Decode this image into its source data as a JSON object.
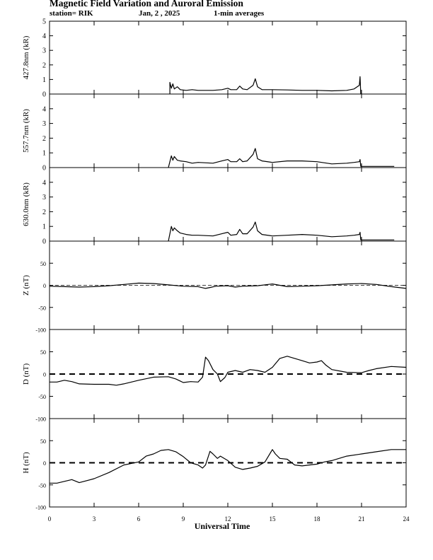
{
  "header": {
    "title": "Magnetic Field Variation and Auroral Emission",
    "station": "station= RIK",
    "date": "Jan, 2  , 2025",
    "averaging": "1-min averages"
  },
  "chart_data": [
    {
      "type": "line",
      "ylabel": "427.8nm (kR)",
      "ylim": [
        0,
        5
      ],
      "yticks": [
        0,
        1,
        2,
        3,
        4,
        5
      ],
      "points": [
        [
          8.1,
          0.0
        ],
        [
          8.1,
          0.8
        ],
        [
          8.2,
          0.4
        ],
        [
          8.3,
          0.7
        ],
        [
          8.4,
          0.35
        ],
        [
          8.6,
          0.5
        ],
        [
          8.8,
          0.3
        ],
        [
          9.2,
          0.25
        ],
        [
          9.6,
          0.3
        ],
        [
          10.0,
          0.25
        ],
        [
          11.0,
          0.25
        ],
        [
          11.6,
          0.3
        ],
        [
          12.0,
          0.4
        ],
        [
          12.2,
          0.3
        ],
        [
          12.6,
          0.3
        ],
        [
          12.8,
          0.55
        ],
        [
          13.0,
          0.35
        ],
        [
          13.3,
          0.3
        ],
        [
          13.7,
          0.6
        ],
        [
          13.85,
          1.05
        ],
        [
          14.0,
          0.5
        ],
        [
          14.3,
          0.3
        ],
        [
          15.0,
          0.3
        ],
        [
          16.0,
          0.28
        ],
        [
          17.0,
          0.25
        ],
        [
          18.0,
          0.25
        ],
        [
          19.0,
          0.22
        ],
        [
          20.0,
          0.25
        ],
        [
          20.5,
          0.35
        ],
        [
          20.85,
          0.6
        ],
        [
          20.9,
          1.2
        ],
        [
          20.95,
          0.0
        ]
      ]
    },
    {
      "type": "line",
      "ylabel": "557.7nm (kR)",
      "ylim": [
        0,
        5
      ],
      "yticks": [
        0,
        1,
        2,
        3,
        4
      ],
      "points": [
        [
          8.0,
          0.0
        ],
        [
          8.1,
          0.4
        ],
        [
          8.2,
          0.8
        ],
        [
          8.3,
          0.5
        ],
        [
          8.4,
          0.75
        ],
        [
          8.6,
          0.5
        ],
        [
          8.8,
          0.45
        ],
        [
          9.2,
          0.4
        ],
        [
          9.6,
          0.3
        ],
        [
          10.0,
          0.35
        ],
        [
          11.0,
          0.3
        ],
        [
          11.6,
          0.45
        ],
        [
          12.0,
          0.55
        ],
        [
          12.2,
          0.4
        ],
        [
          12.6,
          0.4
        ],
        [
          12.8,
          0.6
        ],
        [
          13.0,
          0.4
        ],
        [
          13.3,
          0.45
        ],
        [
          13.7,
          0.9
        ],
        [
          13.85,
          1.3
        ],
        [
          14.0,
          0.6
        ],
        [
          14.3,
          0.45
        ],
        [
          15.0,
          0.35
        ],
        [
          16.0,
          0.45
        ],
        [
          17.0,
          0.45
        ],
        [
          18.0,
          0.4
        ],
        [
          19.0,
          0.25
        ],
        [
          20.0,
          0.3
        ],
        [
          20.5,
          0.35
        ],
        [
          20.85,
          0.4
        ],
        [
          20.9,
          0.55
        ],
        [
          20.95,
          0.08
        ],
        [
          22.5,
          0.08
        ],
        [
          23.2,
          0.08
        ]
      ]
    },
    {
      "type": "line",
      "ylabel": "630.0nm (kR)",
      "ylim": [
        0,
        5
      ],
      "yticks": [
        0,
        1,
        2,
        3,
        4
      ],
      "points": [
        [
          8.0,
          0.0
        ],
        [
          8.1,
          0.5
        ],
        [
          8.2,
          1.0
        ],
        [
          8.3,
          0.7
        ],
        [
          8.4,
          0.9
        ],
        [
          8.6,
          0.7
        ],
        [
          8.8,
          0.55
        ],
        [
          9.2,
          0.45
        ],
        [
          9.6,
          0.4
        ],
        [
          10.0,
          0.4
        ],
        [
          11.0,
          0.35
        ],
        [
          11.6,
          0.5
        ],
        [
          12.0,
          0.6
        ],
        [
          12.2,
          0.4
        ],
        [
          12.6,
          0.45
        ],
        [
          12.8,
          0.8
        ],
        [
          13.0,
          0.5
        ],
        [
          13.3,
          0.5
        ],
        [
          13.7,
          0.95
        ],
        [
          13.85,
          1.3
        ],
        [
          14.0,
          0.7
        ],
        [
          14.3,
          0.45
        ],
        [
          15.0,
          0.35
        ],
        [
          16.0,
          0.4
        ],
        [
          17.0,
          0.45
        ],
        [
          18.0,
          0.4
        ],
        [
          19.0,
          0.3
        ],
        [
          20.0,
          0.35
        ],
        [
          20.5,
          0.4
        ],
        [
          20.85,
          0.45
        ],
        [
          20.9,
          0.6
        ],
        [
          20.95,
          0.08
        ],
        [
          22.5,
          0.08
        ],
        [
          23.2,
          0.08
        ]
      ]
    },
    {
      "type": "line",
      "ylabel": "Z (nT)",
      "ylim": [
        -100,
        100
      ],
      "yticks": [
        -100,
        -50,
        0,
        50
      ],
      "zero_line": "dashed-thin",
      "points": [
        [
          0,
          -2
        ],
        [
          1,
          -3
        ],
        [
          2,
          -4
        ],
        [
          3,
          -3
        ],
        [
          4,
          -1
        ],
        [
          5,
          2
        ],
        [
          6,
          5
        ],
        [
          7,
          4
        ],
        [
          8,
          1
        ],
        [
          9,
          -2
        ],
        [
          10,
          -3
        ],
        [
          10.5,
          -7
        ],
        [
          10.8,
          -5
        ],
        [
          11.2,
          -2
        ],
        [
          12.0,
          -1
        ],
        [
          12.5,
          -4
        ],
        [
          13,
          -2
        ],
        [
          14,
          -1
        ],
        [
          15,
          3
        ],
        [
          16,
          -3
        ],
        [
          17,
          -2
        ],
        [
          18,
          -1
        ],
        [
          19,
          1
        ],
        [
          20,
          3
        ],
        [
          21,
          4
        ],
        [
          22,
          2
        ],
        [
          23,
          -3
        ],
        [
          24,
          -7
        ]
      ]
    },
    {
      "type": "line",
      "ylabel": "D (nT)",
      "ylim": [
        -100,
        100
      ],
      "yticks": [
        -100,
        -50,
        0,
        50
      ],
      "zero_line": "dashed",
      "points": [
        [
          0,
          -18
        ],
        [
          0.5,
          -18
        ],
        [
          1,
          -14
        ],
        [
          1.5,
          -17
        ],
        [
          2,
          -22
        ],
        [
          3,
          -23
        ],
        [
          4,
          -23
        ],
        [
          4.5,
          -25
        ],
        [
          5,
          -22
        ],
        [
          6,
          -14
        ],
        [
          7,
          -7
        ],
        [
          8,
          -6
        ],
        [
          8.5,
          -11
        ],
        [
          9,
          -19
        ],
        [
          9.5,
          -17
        ],
        [
          10,
          -18
        ],
        [
          10.3,
          -7
        ],
        [
          10.5,
          38
        ],
        [
          10.7,
          30
        ],
        [
          11.0,
          10
        ],
        [
          11.3,
          0
        ],
        [
          11.5,
          -17
        ],
        [
          11.8,
          -8
        ],
        [
          12,
          4
        ],
        [
          12.5,
          8
        ],
        [
          13,
          4
        ],
        [
          13.5,
          10
        ],
        [
          14,
          8
        ],
        [
          14.5,
          4
        ],
        [
          15,
          15
        ],
        [
          15.5,
          35
        ],
        [
          16,
          40
        ],
        [
          16.5,
          35
        ],
        [
          17,
          30
        ],
        [
          17.5,
          25
        ],
        [
          18,
          27
        ],
        [
          18.3,
          30
        ],
        [
          18.6,
          20
        ],
        [
          19,
          10
        ],
        [
          20,
          4
        ],
        [
          21,
          3
        ],
        [
          21.5,
          8
        ],
        [
          22,
          12
        ],
        [
          23,
          17
        ],
        [
          24,
          15
        ]
      ]
    },
    {
      "type": "line",
      "ylabel": "H (nT)",
      "ylim": [
        -100,
        100
      ],
      "yticks": [
        -100,
        -50,
        0,
        50
      ],
      "zero_line": "dashed",
      "points": [
        [
          0,
          -46
        ],
        [
          0.5,
          -46
        ],
        [
          1,
          -42
        ],
        [
          1.5,
          -38
        ],
        [
          2,
          -45
        ],
        [
          3,
          -36
        ],
        [
          4,
          -22
        ],
        [
          5,
          -5
        ],
        [
          6,
          2
        ],
        [
          6.5,
          15
        ],
        [
          7,
          20
        ],
        [
          7.5,
          28
        ],
        [
          8,
          30
        ],
        [
          8.5,
          25
        ],
        [
          9,
          14
        ],
        [
          9.5,
          0
        ],
        [
          10,
          -5
        ],
        [
          10.3,
          -12
        ],
        [
          10.5,
          -5
        ],
        [
          10.8,
          26
        ],
        [
          11,
          20
        ],
        [
          11.3,
          10
        ],
        [
          11.5,
          15
        ],
        [
          12,
          5
        ],
        [
          12.5,
          -10
        ],
        [
          13,
          -15
        ],
        [
          13.5,
          -12
        ],
        [
          14,
          -8
        ],
        [
          14.5,
          2
        ],
        [
          15,
          30
        ],
        [
          15.2,
          20
        ],
        [
          15.5,
          10
        ],
        [
          16,
          8
        ],
        [
          16.5,
          -5
        ],
        [
          17,
          -7
        ],
        [
          18,
          -3
        ],
        [
          18.5,
          2
        ],
        [
          19,
          5
        ],
        [
          20,
          15
        ],
        [
          21,
          20
        ],
        [
          22,
          25
        ],
        [
          23,
          30
        ],
        [
          24,
          30
        ]
      ]
    }
  ],
  "x_axis": {
    "label": "Universal Time",
    "xlim": [
      0,
      24
    ],
    "ticks": [
      "0",
      "3",
      "6",
      "9",
      "12",
      "15",
      "18",
      "21",
      "24"
    ]
  },
  "colors": {
    "line": "#000000",
    "background": "#ffffff"
  }
}
